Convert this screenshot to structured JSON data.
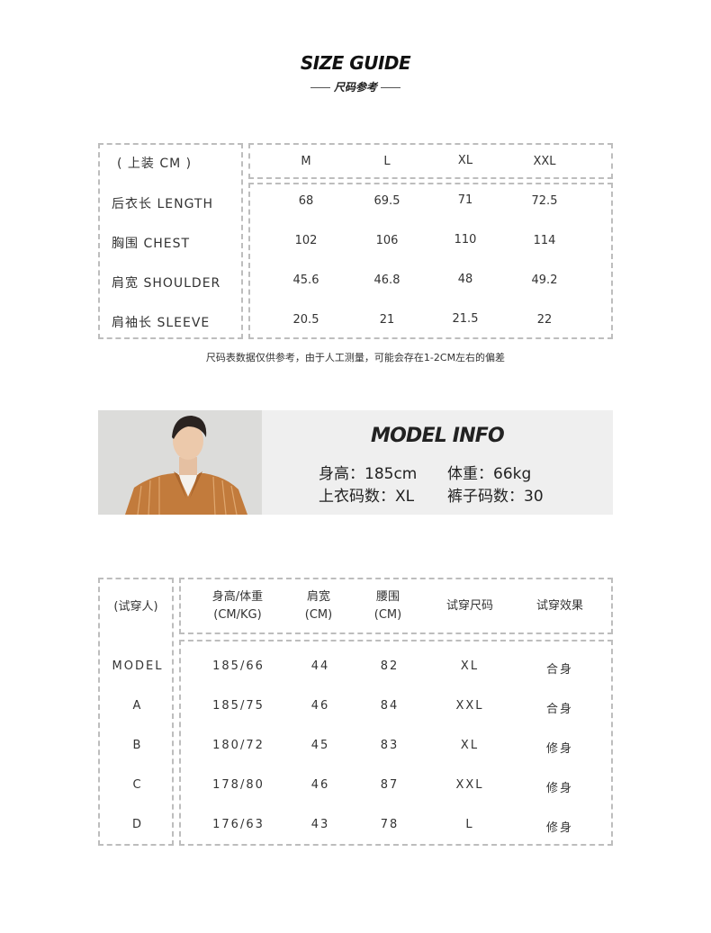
{
  "header": {
    "title": "SIZE GUIDE",
    "subtitle": "尺码参考"
  },
  "size_table": {
    "corner_label": "( 上装 CM )",
    "sizes": [
      "M",
      "L",
      "XL",
      "XXL"
    ],
    "rows": [
      {
        "label": "后衣长 LENGTH",
        "values": [
          "68",
          "69.5",
          "71",
          "72.5"
        ]
      },
      {
        "label": "胸围 CHEST",
        "values": [
          "102",
          "106",
          "110",
          "114"
        ]
      },
      {
        "label": "肩宽 SHOULDER",
        "values": [
          "45.6",
          "46.8",
          "48",
          "49.2"
        ]
      },
      {
        "label": "肩袖长 SLEEVE",
        "values": [
          "20.5",
          "21",
          "21.5",
          "22"
        ]
      }
    ],
    "note": "尺码表数据仅供参考，由于人工测量，可能会存在1-2CM左右的偏差"
  },
  "model_info": {
    "title": "MODEL INFO",
    "height": "身高：185cm",
    "weight": "体重：66kg",
    "top_size": "上衣码数：XL",
    "pants_size": "裤子码数：30"
  },
  "fit_table": {
    "corner_label": "(试穿人)",
    "headers": [
      {
        "line1": "身高/体重",
        "line2": "(CM/KG)"
      },
      {
        "line1": "肩宽",
        "line2": "(CM)"
      },
      {
        "line1": "腰围",
        "line2": "(CM)"
      },
      {
        "line1": "试穿尺码",
        "line2": ""
      },
      {
        "line1": "试穿效果",
        "line2": ""
      }
    ],
    "rows": [
      {
        "label": "MODEL",
        "values": [
          "185/66",
          "44",
          "82",
          "XL",
          "合身"
        ]
      },
      {
        "label": "A",
        "values": [
          "185/75",
          "46",
          "84",
          "XXL",
          "合身"
        ]
      },
      {
        "label": "B",
        "values": [
          "180/72",
          "45",
          "83",
          "XL",
          "修身"
        ]
      },
      {
        "label": "C",
        "values": [
          "178/80",
          "46",
          "87",
          "XXL",
          "修身"
        ]
      },
      {
        "label": "D",
        "values": [
          "176/63",
          "43",
          "78",
          "L",
          "修身"
        ]
      }
    ]
  }
}
